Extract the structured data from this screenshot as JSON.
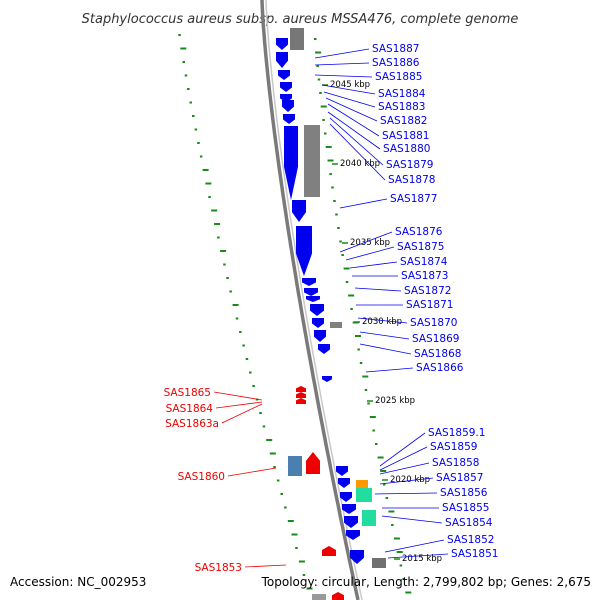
{
  "title": "Staphylococcus aureus subsp. aureus MSSA476, complete genome",
  "footer": {
    "accession": "Accession: NC_002953",
    "summary": "Topology: circular, Length: 2,799,802 bp; Genes: 2,675"
  },
  "colors": {
    "forward": "#0000ee",
    "reverse": "#ee0000",
    "backbone": "#888888",
    "gc_ticks": "#1a8a1a",
    "highlight_orange": "#ff9900",
    "highlight_teal": "#22dda0",
    "highlight_steel": "#4a7fb0"
  },
  "kbp_marks": [
    {
      "text": "2045 kbp"
    },
    {
      "text": "2040 kbp"
    },
    {
      "text": "2035 kbp"
    },
    {
      "text": "2030 kbp"
    },
    {
      "text": "2025 kbp"
    },
    {
      "text": "2020 kbp"
    },
    {
      "text": "2015 kbp"
    }
  ],
  "right_labels": [
    "SAS1887",
    "SAS1886",
    "SAS1885",
    "SAS1884",
    "SAS1883",
    "SAS1882",
    "SAS1881",
    "SAS1880",
    "SAS1879",
    "SAS1878",
    "SAS1877",
    "SAS1876",
    "SAS1875",
    "SAS1874",
    "SAS1873",
    "SAS1872",
    "SAS1871",
    "SAS1870",
    "SAS1869",
    "SAS1868",
    "SAS1866",
    "SAS1859.1",
    "SAS1859",
    "SAS1858",
    "SAS1857",
    "SAS1856",
    "SAS1855",
    "SAS1854",
    "SAS1852",
    "SAS1851"
  ],
  "left_labels": [
    "SAS1865",
    "SAS1864",
    "SAS1863a",
    "SAS1860",
    "SAS1853"
  ]
}
